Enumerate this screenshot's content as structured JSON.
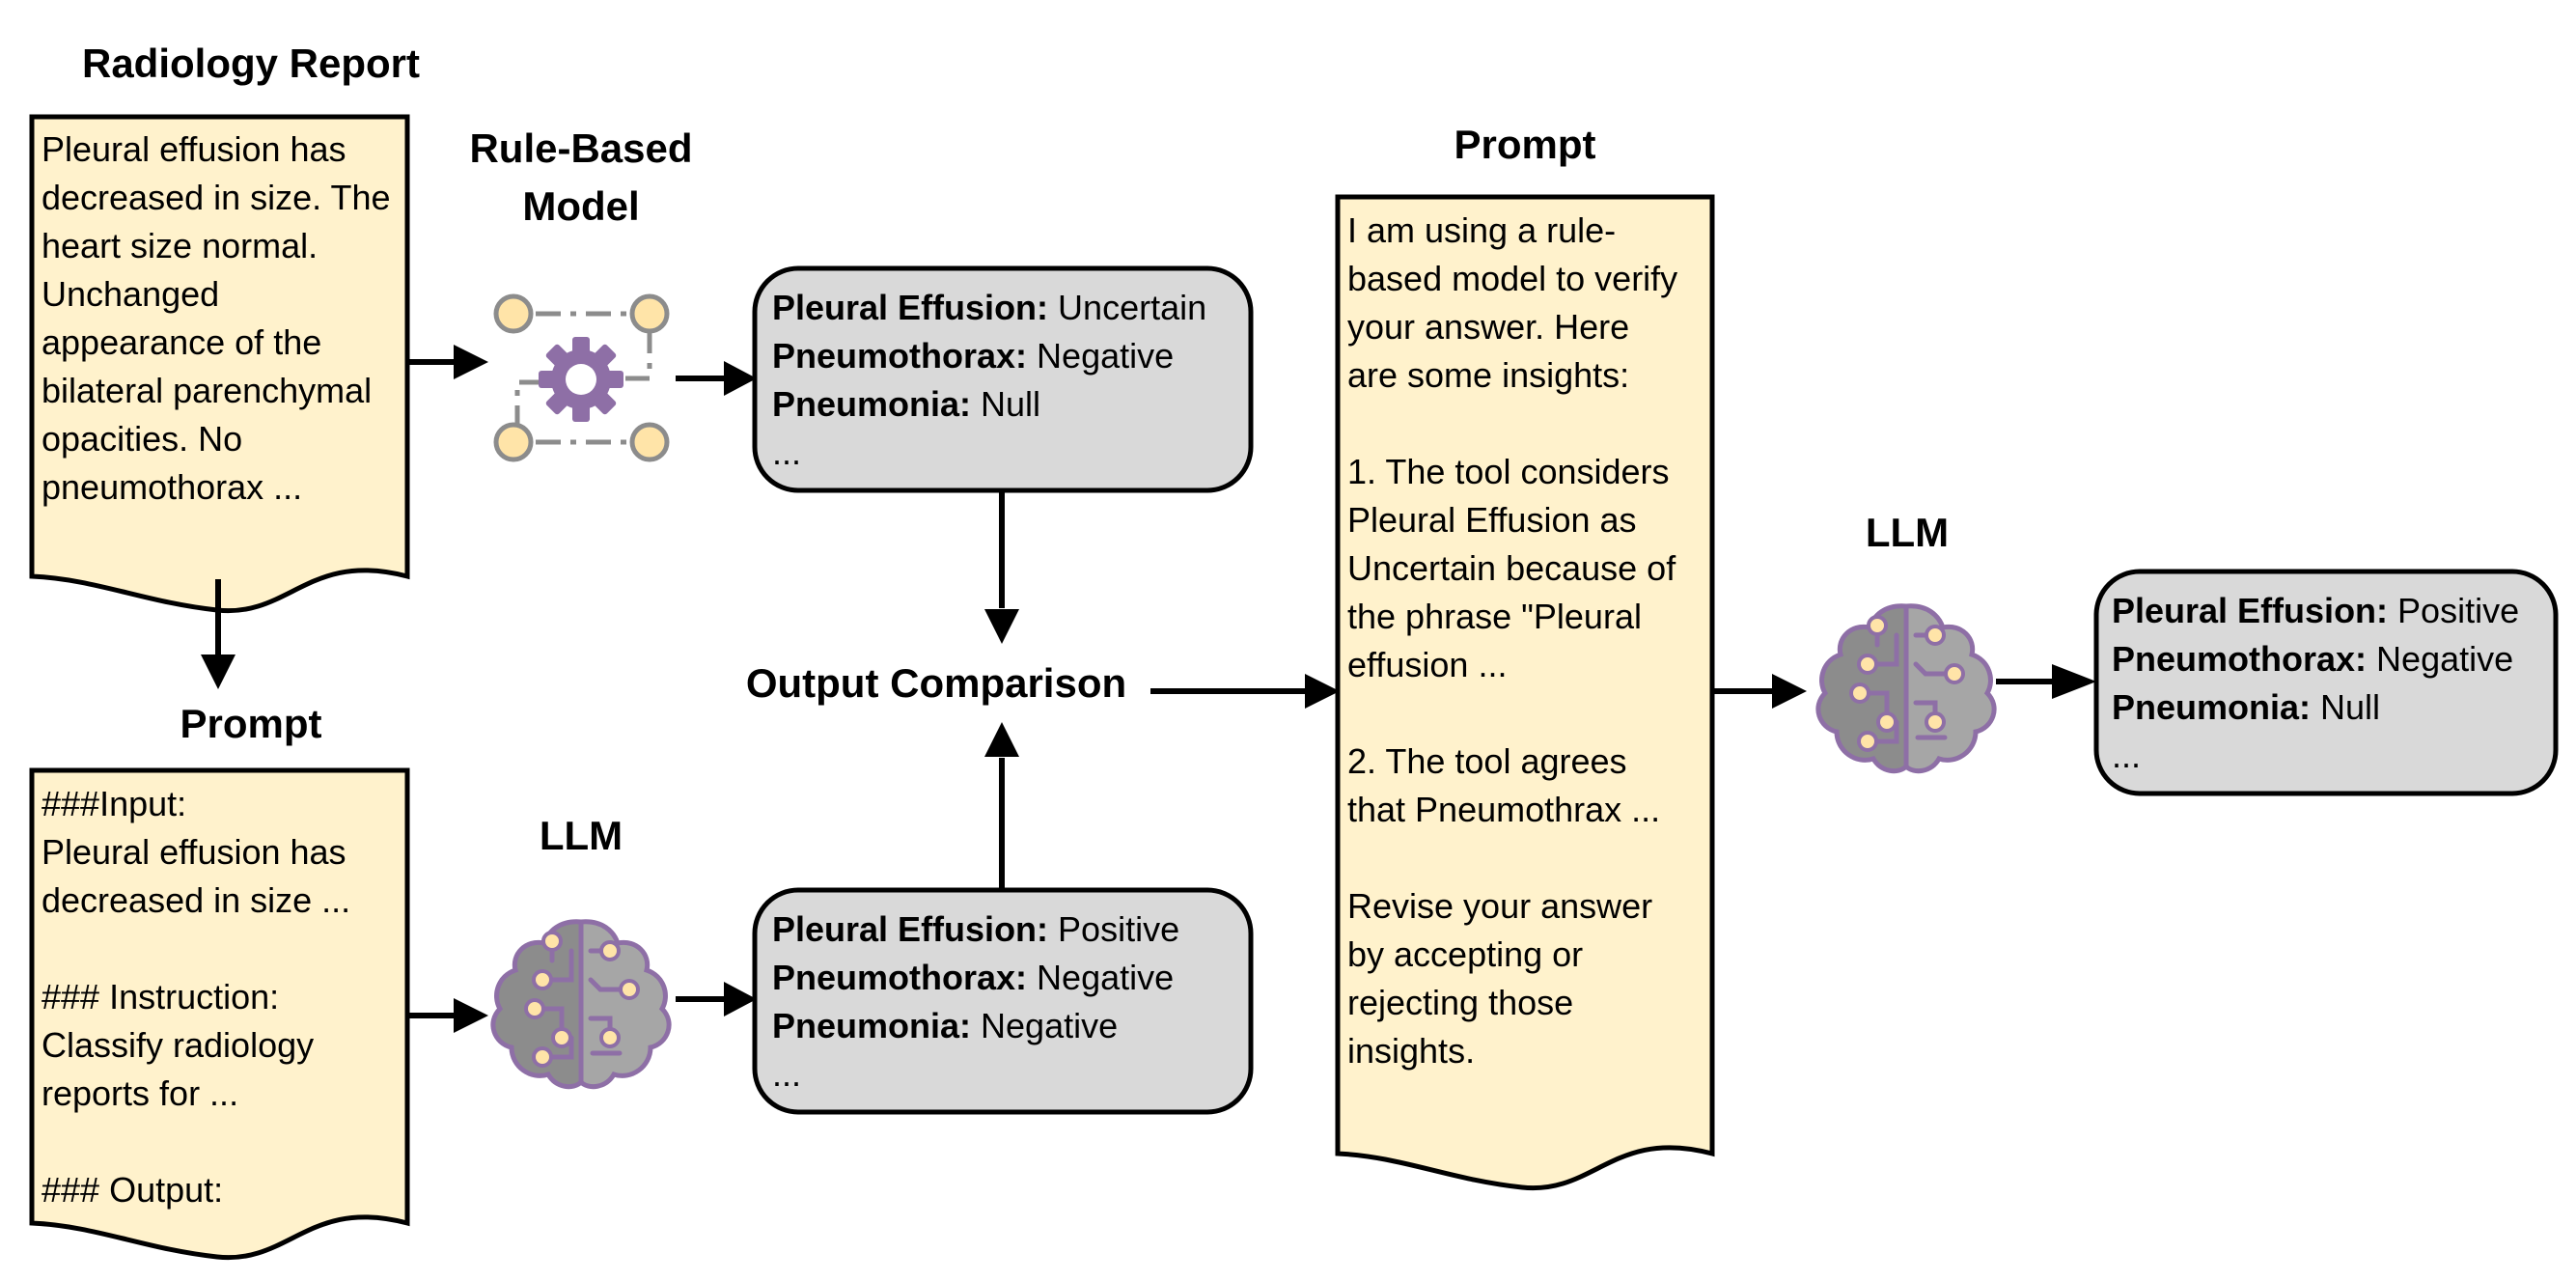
{
  "headings": {
    "radiology_report": "Radiology Report",
    "rule_based_line1": "Rule-Based",
    "rule_based_line2": "Model",
    "prompt_left": "Prompt",
    "llm_left": "LLM",
    "output_comparison": "Output Comparison",
    "prompt_right": "Prompt",
    "llm_right": "LLM"
  },
  "radiology_report_text": "Pleural effusion has\ndecreased in size. The\nheart size normal.\nUnchanged\nappearance of the\nbilateral parenchymal\nopacities. No\npneumothorax ...",
  "prompt_left_text": "###Input:\nPleural effusion has\ndecreased in size ...\n\n### Instruction:\nClassify radiology\nreports for ...\n\n### Output:",
  "prompt_right_text": "I am using a rule-\nbased model to verify\nyour answer. Here\nare some insights:\n\n1. The tool considers\nPleural Effusion as\nUncertain because of\nthe phrase \"Pleural\neffusion ...\n\n2. The tool agrees\nthat Pneumothrax ...\n\nRevise your answer\nby accepting or\nrejecting those\ninsights.",
  "rule_output": [
    {
      "label": "Pleural Effusion:",
      "value": "Uncertain"
    },
    {
      "label": "Pneumothorax:",
      "value": "Negative"
    },
    {
      "label": "Pneumonia:",
      "value": "Null"
    },
    {
      "label": "",
      "value": "..."
    }
  ],
  "llm_output": [
    {
      "label": "Pleural Effusion:",
      "value": "Positive"
    },
    {
      "label": "Pneumothorax:",
      "value": "Negative"
    },
    {
      "label": "Pneumonia:",
      "value": "Negative"
    },
    {
      "label": "",
      "value": "..."
    }
  ],
  "final_output": [
    {
      "label": "Pleural Effusion:",
      "value": "Positive"
    },
    {
      "label": "Pneumothorax:",
      "value": "Negative"
    },
    {
      "label": "Pneumonia:",
      "value": "Null"
    },
    {
      "label": "",
      "value": "..."
    }
  ],
  "colors": {
    "document_fill": "#fff2cc",
    "output_fill": "#d9d9d9",
    "stroke": "#000000",
    "icon_gray": "#8c8c8c",
    "icon_purple": "#8e6fa6",
    "icon_node": "#ffe4a8"
  },
  "icons": {
    "rule_model": "gear-network-icon",
    "llm": "brain-circuit-icon"
  }
}
